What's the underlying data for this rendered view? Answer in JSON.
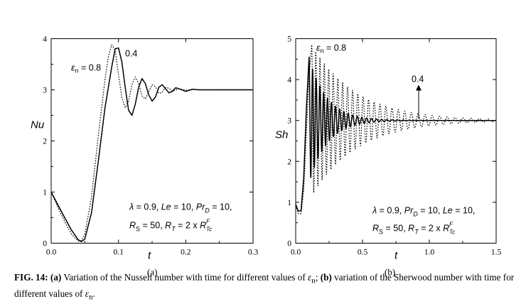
{
  "chart_data": [
    {
      "type": "line",
      "panel_label": "(a)",
      "xlabel": "t",
      "ylabel": "Nu",
      "xlim": [
        0,
        0.3
      ],
      "ylim": [
        0,
        4
      ],
      "xticks": [
        "0.0",
        "0.1",
        "0.2",
        "0.3"
      ],
      "yticks": [
        "0",
        "1",
        "2",
        "3",
        "4"
      ],
      "series_labels": {
        "dotted": "ε_n = 0.8",
        "solid": "0.4"
      },
      "annotation_lines": [
        "λ = 0.9, Le = 10, Pr_D = 10,",
        "R_S = 50, R_T = 2 x R_Tc^F"
      ],
      "series": [
        {
          "name": "0.4",
          "style": "solid",
          "x": [
            0,
            0.01,
            0.02,
            0.03,
            0.04,
            0.045,
            0.05,
            0.06,
            0.07,
            0.08,
            0.09,
            0.095,
            0.1,
            0.105,
            0.11,
            0.115,
            0.12,
            0.125,
            0.13,
            0.135,
            0.14,
            0.145,
            0.15,
            0.155,
            0.16,
            0.165,
            0.17,
            0.175,
            0.18,
            0.185,
            0.19,
            0.2,
            0.21,
            0.22,
            0.23,
            0.24,
            0.25,
            0.26,
            0.28,
            0.3
          ],
          "y": [
            1.0,
            0.75,
            0.5,
            0.26,
            0.07,
            0.03,
            0.08,
            0.6,
            1.6,
            2.65,
            3.45,
            3.8,
            3.82,
            3.55,
            3.05,
            2.6,
            2.5,
            2.72,
            3.05,
            3.22,
            3.12,
            2.9,
            2.78,
            2.86,
            3.05,
            3.1,
            3.02,
            2.94,
            2.97,
            3.04,
            3.02,
            2.97,
            3.01,
            3.0,
            3.0,
            3.0,
            3.0,
            3.0,
            3.0,
            3.0
          ]
        },
        {
          "name": "ε_n = 0.8",
          "style": "dotted",
          "x": [
            0,
            0.01,
            0.02,
            0.03,
            0.04,
            0.045,
            0.05,
            0.06,
            0.07,
            0.08,
            0.085,
            0.09,
            0.095,
            0.1,
            0.105,
            0.11,
            0.115,
            0.12,
            0.125,
            0.13,
            0.135,
            0.14,
            0.145,
            0.15,
            0.155,
            0.16,
            0.165,
            0.17,
            0.175,
            0.18,
            0.19,
            0.2,
            0.21,
            0.22,
            0.24,
            0.26,
            0.28,
            0.3
          ],
          "y": [
            1.0,
            0.7,
            0.42,
            0.18,
            0.04,
            0.05,
            0.18,
            0.9,
            2.1,
            3.2,
            3.65,
            3.88,
            3.78,
            3.3,
            2.85,
            2.65,
            2.78,
            3.1,
            3.25,
            3.12,
            2.88,
            2.82,
            2.96,
            3.1,
            3.06,
            2.93,
            2.95,
            3.05,
            3.03,
            2.97,
            3.02,
            2.99,
            3.01,
            3.0,
            3.0,
            3.0,
            3.0,
            3.0
          ]
        }
      ]
    },
    {
      "type": "line",
      "panel_label": "(b)",
      "xlabel": "t",
      "ylabel": "Sh",
      "xlim": [
        0,
        1.5
      ],
      "ylim": [
        0,
        5
      ],
      "xticks": [
        "0.0",
        "0.5",
        "1.0",
        "1.5"
      ],
      "yticks": [
        "0",
        "1",
        "2",
        "3",
        "4",
        "5"
      ],
      "series_labels": {
        "dotted": "ε_n = 0.8",
        "solid": "0.4"
      },
      "annotation_lines": [
        "λ = 0.9, Pr_D = 10, Le = 10,",
        "R_S = 50, R_T = 2 x R_Tc^F"
      ],
      "series": [
        {
          "name": "0.4",
          "style": "solid",
          "envelope": {
            "t0": 0.1,
            "amp0": 1.55,
            "decay": 7.5,
            "period0": 0.026,
            "period_growth": 0.9,
            "baseline": 3.0,
            "t_end": 1.5
          },
          "x": [
            0,
            0.02,
            0.04,
            0.06,
            0.08,
            0.1
          ],
          "y": [
            0.95,
            0.78,
            0.8,
            1.6,
            3.3,
            4.55
          ]
        },
        {
          "name": "ε_n = 0.8",
          "style": "dotted",
          "envelope": {
            "t0": 0.12,
            "amp0": 1.85,
            "decay": 3.0,
            "period0": 0.03,
            "period_growth": 0.9,
            "baseline": 3.0,
            "t_end": 1.5
          },
          "x": [
            0,
            0.02,
            0.04,
            0.06,
            0.08,
            0.1,
            0.12
          ],
          "y": [
            0.92,
            0.72,
            0.72,
            1.3,
            2.7,
            4.1,
            4.85
          ]
        }
      ]
    }
  ],
  "caption": {
    "label": "FIG. 14:",
    "part_a_label": "(a)",
    "part_a_text": " Variation of the Nusselt number with time for different values of ",
    "part_a_symbol": "ε",
    "part_a_sub": "n",
    "part_a_end": "; ",
    "part_b_label": "(b)",
    "part_b_text": " variation of the Sherwood number with time for different values of ",
    "part_b_symbol": "ε",
    "part_b_sub": "n",
    "part_b_end": "."
  }
}
